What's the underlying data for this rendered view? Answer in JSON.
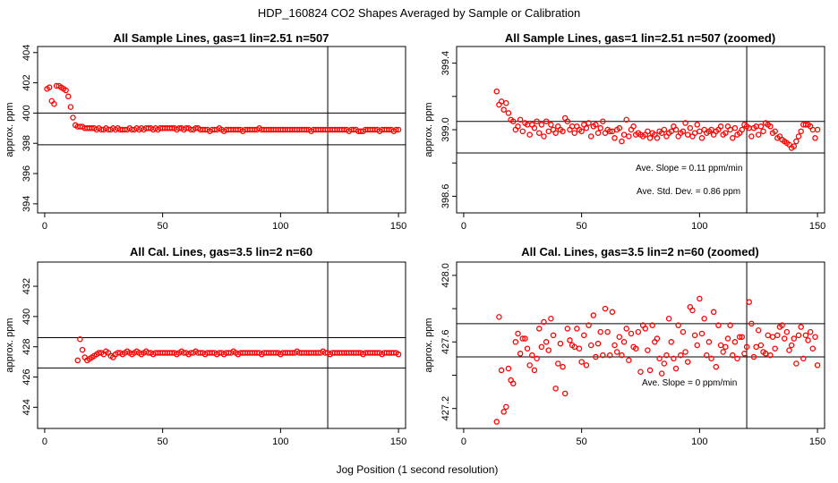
{
  "figure": {
    "title": "HDP_160824  CO2 Shapes Averaged by Sample or Calibration",
    "xlabel": "Jog Position (1 second resolution)",
    "point_color": "#ff0000",
    "line_color": "#000000"
  },
  "chart_data": [
    {
      "type": "scatter",
      "title": "All Sample Lines, gas=1 lin=2.51 n=507",
      "ylabel": "approx. ppm",
      "xlim": [
        -3,
        153
      ],
      "ylim": [
        393.4,
        404.4
      ],
      "xticks": [
        0,
        50,
        100,
        150
      ],
      "yticks": [
        394,
        396,
        398,
        400,
        402,
        404
      ],
      "hlines": [
        400.0,
        397.9
      ],
      "vline": 120,
      "annotations": [],
      "x": [
        1,
        2,
        3,
        4,
        5,
        6,
        7,
        8,
        9,
        10,
        11,
        12,
        13,
        14,
        15,
        16,
        17,
        18,
        19,
        20,
        21,
        22,
        23,
        24,
        25,
        26,
        27,
        28,
        29,
        30,
        31,
        32,
        33,
        34,
        35,
        36,
        37,
        38,
        39,
        40,
        41,
        42,
        43,
        44,
        45,
        46,
        47,
        48,
        49,
        50,
        51,
        52,
        53,
        54,
        55,
        56,
        57,
        58,
        59,
        60,
        61,
        62,
        63,
        64,
        65,
        66,
        67,
        68,
        69,
        70,
        71,
        72,
        73,
        74,
        75,
        76,
        77,
        78,
        79,
        80,
        81,
        82,
        83,
        84,
        85,
        86,
        87,
        88,
        89,
        90,
        91,
        92,
        93,
        94,
        95,
        96,
        97,
        98,
        99,
        100,
        101,
        102,
        103,
        104,
        105,
        106,
        107,
        108,
        109,
        110,
        111,
        112,
        113,
        114,
        115,
        116,
        117,
        118,
        119,
        120,
        121,
        122,
        123,
        124,
        125,
        126,
        127,
        128,
        129,
        130,
        131,
        132,
        133,
        134,
        135,
        136,
        137,
        138,
        139,
        140,
        141,
        142,
        143,
        144,
        145,
        146,
        147,
        148,
        149,
        150
      ],
      "y": [
        401.6,
        401.7,
        400.8,
        400.6,
        401.8,
        401.8,
        401.7,
        401.6,
        401.5,
        401.1,
        400.4,
        399.7,
        399.2,
        399.1,
        399.1,
        399.1,
        399.0,
        399.0,
        399.0,
        399.0,
        399.0,
        398.9,
        399.0,
        398.9,
        398.9,
        399.0,
        398.9,
        398.9,
        399.0,
        398.9,
        399.0,
        398.9,
        398.9,
        398.9,
        398.9,
        399.0,
        398.9,
        398.9,
        399.0,
        398.9,
        399.0,
        398.9,
        399.0,
        399.0,
        399.0,
        398.9,
        399.0,
        398.9,
        399.0,
        399.0,
        399.0,
        399.0,
        399.0,
        399.0,
        399.0,
        398.9,
        399.0,
        399.0,
        398.9,
        399.0,
        399.0,
        398.9,
        398.9,
        399.0,
        399.0,
        398.9,
        398.9,
        398.9,
        398.9,
        398.8,
        398.9,
        398.9,
        398.9,
        399.0,
        398.9,
        398.8,
        398.9,
        398.9,
        398.9,
        398.9,
        398.9,
        398.9,
        398.9,
        398.8,
        398.9,
        398.9,
        398.9,
        398.9,
        398.9,
        398.9,
        399.0,
        398.9,
        398.9,
        398.9,
        398.9,
        398.9,
        398.9,
        398.9,
        398.9,
        398.9,
        398.9,
        398.9,
        398.9,
        398.9,
        398.9,
        398.9,
        398.9,
        398.9,
        398.9,
        398.9,
        398.9,
        398.9,
        398.8,
        398.9,
        398.9,
        398.9,
        398.9,
        398.9,
        398.9,
        398.9,
        398.9,
        398.9,
        398.9,
        398.9,
        398.9,
        398.9,
        398.9,
        398.9,
        398.8,
        398.9,
        398.9,
        398.9,
        398.8,
        398.8,
        398.8,
        398.9,
        398.9,
        398.9,
        398.9,
        398.9,
        398.9,
        398.8,
        398.9,
        398.9,
        398.9,
        398.9,
        398.9,
        398.8,
        398.9,
        398.9
      ]
    },
    {
      "type": "scatter",
      "title": "All Sample Lines, gas=1 lin=2.51 n=507 (zoomed)",
      "ylabel": "approx. ppm",
      "xlim": [
        -3,
        153
      ],
      "ylim": [
        398.5,
        399.5
      ],
      "xticks": [
        0,
        50,
        100,
        150
      ],
      "yticks": [
        398.6,
        398.8,
        399.0,
        399.2,
        399.4
      ],
      "ytick_labels": [
        "398.6",
        "",
        "399.0",
        "",
        "399.4"
      ],
      "hlines": [
        399.05,
        398.86
      ],
      "vline": 120,
      "annotations": [
        "Ave. Slope =  0.11  ppm/min",
        "Ave. Std. Dev. =  0.86  ppm"
      ],
      "x": [
        14,
        15,
        16,
        17,
        18,
        19,
        20,
        21,
        22,
        23,
        24,
        25,
        26,
        27,
        28,
        29,
        30,
        31,
        32,
        33,
        34,
        35,
        36,
        37,
        38,
        39,
        40,
        41,
        42,
        43,
        44,
        45,
        46,
        47,
        48,
        49,
        50,
        51,
        52,
        53,
        54,
        55,
        56,
        57,
        58,
        59,
        60,
        61,
        62,
        63,
        64,
        65,
        66,
        67,
        68,
        69,
        70,
        71,
        72,
        73,
        74,
        75,
        76,
        77,
        78,
        79,
        80,
        81,
        82,
        83,
        84,
        85,
        86,
        87,
        88,
        89,
        90,
        91,
        92,
        93,
        94,
        95,
        96,
        97,
        98,
        99,
        100,
        101,
        102,
        103,
        104,
        105,
        106,
        107,
        108,
        109,
        110,
        111,
        112,
        113,
        114,
        115,
        116,
        117,
        118,
        119,
        120,
        121,
        122,
        123,
        124,
        125,
        126,
        127,
        128,
        129,
        130,
        131,
        132,
        133,
        134,
        135,
        136,
        137,
        138,
        139,
        140,
        141,
        142,
        143,
        144,
        145,
        146,
        147,
        148,
        149,
        150
      ],
      "y": [
        399.23,
        399.15,
        399.17,
        399.12,
        399.16,
        399.1,
        399.06,
        399.05,
        399.0,
        399.02,
        399.06,
        398.99,
        399.04,
        399.03,
        398.97,
        399.03,
        399.01,
        399.05,
        398.98,
        399.03,
        398.96,
        399.05,
        398.99,
        399.03,
        399.0,
        398.98,
        399.02,
        399.0,
        398.99,
        399.07,
        399.05,
        399.0,
        399.02,
        398.98,
        399.02,
        399.0,
        398.99,
        399.03,
        399.01,
        399.04,
        398.96,
        399.02,
        399.03,
        398.98,
        399.01,
        399.05,
        398.98,
        399.0,
        398.99,
        398.99,
        398.95,
        399.0,
        399.01,
        398.93,
        398.97,
        399.06,
        398.96,
        399.0,
        399.02,
        398.97,
        398.98,
        398.97,
        398.96,
        398.97,
        398.99,
        398.95,
        398.98,
        398.97,
        398.95,
        398.99,
        398.98,
        399.0,
        398.96,
        398.98,
        398.99,
        399.02,
        399.0,
        398.96,
        398.98,
        398.99,
        399.04,
        398.97,
        399.01,
        398.96,
        398.98,
        399.03,
        398.99,
        398.95,
        399.0,
        398.98,
        398.99,
        399.0,
        398.97,
        398.99,
        399.0,
        399.02,
        398.97,
        398.98,
        399.02,
        399.0,
        398.95,
        399.01,
        398.97,
        398.98,
        399.0,
        399.03,
        399.02,
        399.01,
        398.96,
        399.01,
        399.02,
        398.97,
        399.02,
        398.99,
        399.04,
        399.03,
        399.02,
        398.98,
        398.99,
        398.95,
        398.96,
        398.94,
        398.93,
        398.92,
        398.91,
        398.89,
        398.9,
        398.93,
        398.96,
        398.99,
        399.03,
        399.03,
        399.03,
        399.02,
        399.0,
        398.95,
        399.0
      ]
    },
    {
      "type": "scatter",
      "title": "All Cal. Lines, gas=3.5 lin=2 n=60",
      "ylabel": "approx. ppm",
      "xlim": [
        -3,
        153
      ],
      "ylim": [
        422.6,
        433.6
      ],
      "xticks": [
        0,
        50,
        100,
        150
      ],
      "yticks": [
        424,
        426,
        428,
        430,
        432
      ],
      "hlines": [
        428.6,
        426.6
      ],
      "vline": 120,
      "annotations": [],
      "x": [
        14,
        15,
        16,
        17,
        18,
        19,
        20,
        21,
        22,
        23,
        24,
        25,
        26,
        27,
        28,
        29,
        30,
        31,
        32,
        33,
        34,
        35,
        36,
        37,
        38,
        39,
        40,
        41,
        42,
        43,
        44,
        45,
        46,
        47,
        48,
        49,
        50,
        51,
        52,
        53,
        54,
        55,
        56,
        57,
        58,
        59,
        60,
        61,
        62,
        63,
        64,
        65,
        66,
        67,
        68,
        69,
        70,
        71,
        72,
        73,
        74,
        75,
        76,
        77,
        78,
        79,
        80,
        81,
        82,
        83,
        84,
        85,
        86,
        87,
        88,
        89,
        90,
        91,
        92,
        93,
        94,
        95,
        96,
        97,
        98,
        99,
        100,
        101,
        102,
        103,
        104,
        105,
        106,
        107,
        108,
        109,
        110,
        111,
        112,
        113,
        114,
        115,
        116,
        117,
        118,
        119,
        120,
        121,
        122,
        123,
        124,
        125,
        126,
        127,
        128,
        129,
        130,
        131,
        132,
        133,
        134,
        135,
        136,
        137,
        138,
        139,
        140,
        141,
        142,
        143,
        144,
        145,
        146,
        147,
        148,
        149,
        150
      ],
      "y": [
        427.1,
        428.5,
        427.8,
        427.3,
        427.1,
        427.2,
        427.3,
        427.4,
        427.5,
        427.6,
        427.6,
        427.5,
        427.7,
        427.6,
        427.4,
        427.3,
        427.5,
        427.6,
        427.6,
        427.5,
        427.6,
        427.7,
        427.6,
        427.5,
        427.6,
        427.7,
        427.6,
        427.5,
        427.6,
        427.7,
        427.6,
        427.6,
        427.5,
        427.6,
        427.6,
        427.6,
        427.6,
        427.6,
        427.6,
        427.6,
        427.6,
        427.6,
        427.5,
        427.6,
        427.7,
        427.6,
        427.6,
        427.5,
        427.6,
        427.6,
        427.7,
        427.6,
        427.6,
        427.6,
        427.5,
        427.6,
        427.6,
        427.6,
        427.6,
        427.5,
        427.6,
        427.6,
        427.5,
        427.6,
        427.6,
        427.6,
        427.7,
        427.6,
        427.5,
        427.6,
        427.6,
        427.6,
        427.6,
        427.6,
        427.6,
        427.6,
        427.6,
        427.6,
        427.5,
        427.6,
        427.6,
        427.6,
        427.6,
        427.6,
        427.6,
        427.6,
        427.5,
        427.6,
        427.6,
        427.6,
        427.6,
        427.6,
        427.6,
        427.7,
        427.6,
        427.6,
        427.6,
        427.6,
        427.6,
        427.6,
        427.6,
        427.6,
        427.6,
        427.6,
        427.7,
        427.6,
        427.6,
        427.5,
        427.6,
        427.6,
        427.6,
        427.6,
        427.6,
        427.6,
        427.6,
        427.6,
        427.6,
        427.6,
        427.6,
        427.6,
        427.6,
        427.5,
        427.6,
        427.6,
        427.6,
        427.6,
        427.6,
        427.6,
        427.6,
        427.5,
        427.6,
        427.6,
        427.6,
        427.6,
        427.6,
        427.6,
        427.5
      ]
    },
    {
      "type": "scatter",
      "title": "All Cal. Lines, gas=3.5 lin=2 n=60 (zoomed)",
      "ylabel": "approx. ppm",
      "xlim": [
        -3,
        153
      ],
      "ylim": [
        427.08,
        428.08
      ],
      "xticks": [
        0,
        50,
        100,
        150
      ],
      "yticks": [
        427.2,
        427.4,
        427.6,
        427.8,
        428.0
      ],
      "ytick_labels": [
        "427.2",
        "",
        "427.6",
        "",
        "428.0"
      ],
      "hlines": [
        427.71,
        427.51
      ],
      "vline": 120,
      "annotations": [
        "Ave. Slope =  0  ppm/min"
      ],
      "x": [
        14,
        15,
        16,
        17,
        18,
        19,
        20,
        21,
        22,
        23,
        24,
        25,
        26,
        27,
        28,
        29,
        30,
        31,
        32,
        33,
        34,
        35,
        36,
        37,
        38,
        39,
        40,
        41,
        42,
        43,
        44,
        45,
        46,
        47,
        48,
        49,
        50,
        51,
        52,
        53,
        54,
        55,
        56,
        57,
        58,
        59,
        60,
        61,
        62,
        63,
        64,
        65,
        66,
        67,
        68,
        69,
        70,
        71,
        72,
        73,
        74,
        75,
        76,
        77,
        78,
        79,
        80,
        81,
        82,
        83,
        84,
        85,
        86,
        87,
        88,
        89,
        90,
        91,
        92,
        93,
        94,
        95,
        96,
        97,
        98,
        99,
        100,
        101,
        102,
        103,
        104,
        105,
        106,
        107,
        108,
        109,
        110,
        111,
        112,
        113,
        114,
        115,
        116,
        117,
        118,
        119,
        120,
        121,
        122,
        123,
        124,
        125,
        126,
        127,
        128,
        129,
        130,
        131,
        132,
        133,
        134,
        135,
        136,
        137,
        138,
        139,
        140,
        141,
        142,
        143,
        144,
        145,
        146,
        147,
        148,
        149,
        150
      ],
      "y": [
        427.12,
        427.75,
        427.43,
        427.18,
        427.21,
        427.44,
        427.37,
        427.35,
        427.6,
        427.65,
        427.53,
        427.62,
        427.62,
        427.56,
        427.46,
        427.52,
        427.43,
        427.5,
        427.68,
        427.57,
        427.72,
        427.6,
        427.55,
        427.74,
        427.64,
        427.32,
        427.47,
        427.59,
        427.45,
        427.29,
        427.68,
        427.61,
        427.58,
        427.57,
        427.68,
        427.56,
        427.48,
        427.64,
        427.46,
        427.7,
        427.58,
        427.76,
        427.51,
        427.59,
        427.66,
        427.52,
        427.8,
        427.66,
        427.52,
        427.78,
        427.58,
        427.54,
        427.63,
        427.52,
        427.6,
        427.68,
        427.49,
        427.65,
        427.57,
        427.56,
        427.66,
        427.42,
        427.7,
        427.68,
        427.55,
        427.43,
        427.7,
        427.6,
        427.62,
        427.5,
        427.41,
        427.47,
        427.52,
        427.74,
        427.6,
        427.5,
        427.44,
        427.7,
        427.52,
        427.66,
        427.54,
        427.48,
        427.81,
        427.79,
        427.64,
        427.58,
        427.86,
        427.65,
        427.74,
        427.52,
        427.6,
        427.5,
        427.78,
        427.45,
        427.7,
        427.58,
        427.54,
        427.57,
        427.62,
        427.7,
        427.52,
        427.6,
        427.5,
        427.63,
        427.63,
        427.53,
        427.57,
        427.84,
        427.71,
        427.51,
        427.57,
        427.67,
        427.58,
        427.54,
        427.53,
        427.64,
        427.52,
        427.63,
        427.56,
        427.64,
        427.69,
        427.7,
        427.62,
        427.66,
        427.55,
        427.58,
        427.62,
        427.47,
        427.64,
        427.69,
        427.5,
        427.64,
        427.61,
        427.66,
        427.56,
        427.63,
        427.46
      ]
    }
  ]
}
